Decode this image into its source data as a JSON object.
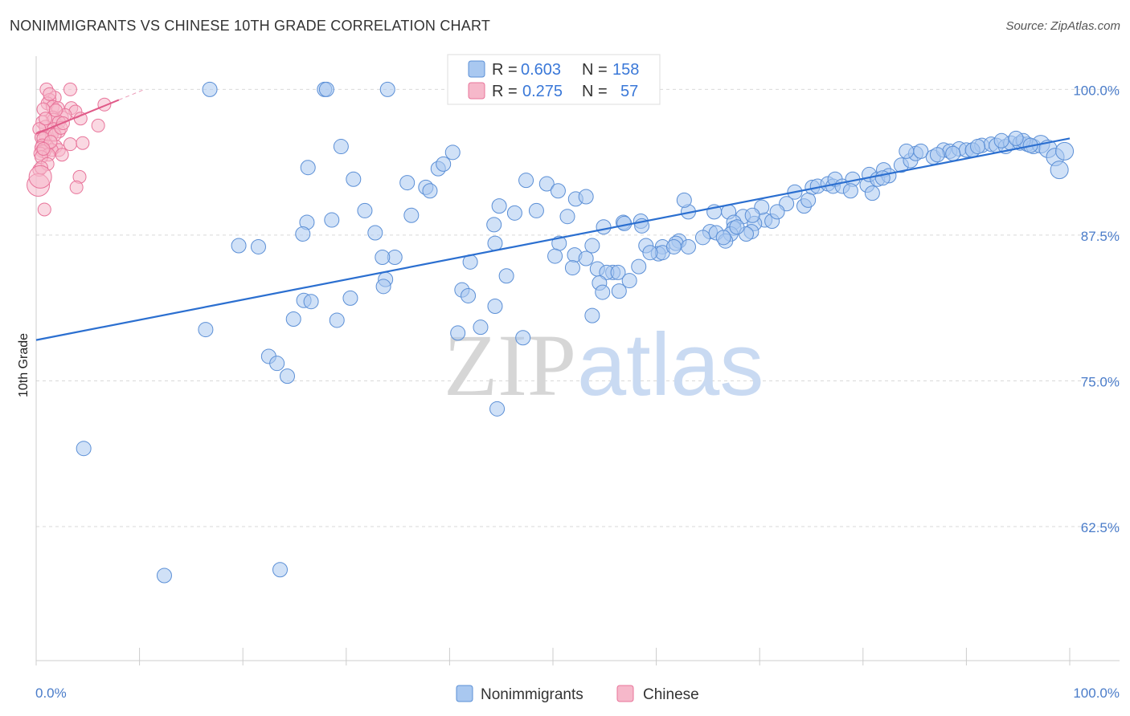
{
  "title": "NONIMMIGRANTS VS CHINESE 10TH GRADE CORRELATION CHART",
  "source": "Source: ZipAtlas.com",
  "watermark": {
    "zip": "ZIP",
    "atlas": "atlas"
  },
  "legend_top": {
    "series1": {
      "r_label": "R =",
      "r_value": "0.603",
      "n_label": "N =",
      "n_value": "158"
    },
    "series2": {
      "r_label": "R =",
      "r_value": "0.275",
      "n_label": "N =",
      "n_value": "57"
    }
  },
  "colors": {
    "blue_fill": "#a9c8f0",
    "blue_stroke": "#5b8fd6",
    "blue_line": "#2b6fd0",
    "pink_fill": "#f6b8ca",
    "pink_stroke": "#e8749a",
    "pink_line": "#e05a88",
    "tick_text": "#4a7cc9",
    "grid": "#d9d9d9"
  },
  "chart_data": {
    "type": "scatter",
    "title": "NONIMMIGRANTS VS CHINESE 10TH GRADE CORRELATION CHART",
    "xlabel": "",
    "ylabel": "10th Grade",
    "xlim": [
      0,
      100
    ],
    "ylim": [
      51,
      102.3
    ],
    "x_tick_labels": [
      "0.0%",
      "100.0%"
    ],
    "y_ticks": [
      {
        "value": 100,
        "label": "100.0%"
      },
      {
        "value": 87.5,
        "label": "87.5%"
      },
      {
        "value": 75,
        "label": "75.0%"
      },
      {
        "value": 62.5,
        "label": "62.5%"
      }
    ],
    "legend": [
      "Nonimmigrants",
      "Chinese"
    ],
    "series": [
      {
        "name": "Nonimmigrants",
        "trend": {
          "x": [
            0,
            100
          ],
          "y": [
            78.5,
            95.8
          ]
        },
        "points": [
          [
            16.8,
            100
          ],
          [
            27.9,
            100
          ],
          [
            28.1,
            100
          ],
          [
            34,
            100
          ],
          [
            29.5,
            95.1
          ],
          [
            26.3,
            93.3
          ],
          [
            30.7,
            92.3
          ],
          [
            35.9,
            92
          ],
          [
            38.9,
            93.2
          ],
          [
            39.4,
            93.6
          ],
          [
            40.3,
            94.6
          ],
          [
            37.7,
            91.6
          ],
          [
            38.1,
            91.3
          ],
          [
            36.3,
            89.2
          ],
          [
            31.8,
            89.6
          ],
          [
            28.6,
            88.8
          ],
          [
            26.2,
            88.6
          ],
          [
            25.8,
            87.6
          ],
          [
            32.8,
            87.7
          ],
          [
            19.6,
            86.6
          ],
          [
            21.5,
            86.5
          ],
          [
            34.7,
            85.6
          ],
          [
            33.5,
            85.6
          ],
          [
            33.8,
            83.7
          ],
          [
            33.6,
            83.1
          ],
          [
            25.9,
            81.9
          ],
          [
            26.6,
            81.8
          ],
          [
            30.4,
            82.1
          ],
          [
            24.9,
            80.3
          ],
          [
            29.1,
            80.2
          ],
          [
            16.4,
            79.4
          ],
          [
            22.5,
            77.1
          ],
          [
            23.3,
            76.5
          ],
          [
            24.3,
            75.4
          ],
          [
            41.2,
            82.8
          ],
          [
            41.8,
            82.3
          ],
          [
            44.4,
            81.4
          ],
          [
            43,
            79.6
          ],
          [
            40.8,
            79.1
          ],
          [
            47.1,
            78.7
          ],
          [
            44.6,
            72.6
          ],
          [
            4.6,
            69.2
          ],
          [
            12.4,
            58.3
          ],
          [
            23.6,
            58.8
          ],
          [
            44.3,
            88.4
          ],
          [
            44.8,
            90
          ],
          [
            46.3,
            89.4
          ],
          [
            48.4,
            89.6
          ],
          [
            49.4,
            91.9
          ],
          [
            47.4,
            92.2
          ],
          [
            50.5,
            91.3
          ],
          [
            52.2,
            90.6
          ],
          [
            53.2,
            90.8
          ],
          [
            51.4,
            89.1
          ],
          [
            50.6,
            86.8
          ],
          [
            50.2,
            85.7
          ],
          [
            52.1,
            85.8
          ],
          [
            53.2,
            85.5
          ],
          [
            51.9,
            84.7
          ],
          [
            54.3,
            84.6
          ],
          [
            44.4,
            86.8
          ],
          [
            42,
            85.2
          ],
          [
            45.5,
            84
          ],
          [
            53.8,
            86.6
          ],
          [
            54.9,
            88.2
          ],
          [
            56.8,
            88.6
          ],
          [
            56.9,
            88.5
          ],
          [
            58.5,
            88.7
          ],
          [
            58.6,
            88.3
          ],
          [
            63.1,
            89.5
          ],
          [
            62.7,
            90.5
          ],
          [
            65.6,
            89.5
          ],
          [
            67,
            89.5
          ],
          [
            68.4,
            89.1
          ],
          [
            67.5,
            88.6
          ],
          [
            70.5,
            88.8
          ],
          [
            71.2,
            88.7
          ],
          [
            69.5,
            88.5
          ],
          [
            65.2,
            87.8
          ],
          [
            64.5,
            87.3
          ],
          [
            65.8,
            87.7
          ],
          [
            62.2,
            87
          ],
          [
            61.9,
            86.8
          ],
          [
            60.6,
            86.5
          ],
          [
            59,
            86.6
          ],
          [
            60.2,
            85.9
          ],
          [
            60.6,
            86
          ],
          [
            63.1,
            86.5
          ],
          [
            67.5,
            88.1
          ],
          [
            67.2,
            87.6
          ],
          [
            69.2,
            87.8
          ],
          [
            68.7,
            87.6
          ],
          [
            66.7,
            87
          ],
          [
            55.8,
            84.3
          ],
          [
            55.2,
            84.3
          ],
          [
            56.3,
            84.3
          ],
          [
            54.5,
            83.4
          ],
          [
            57.4,
            83.6
          ],
          [
            58.3,
            84.8
          ],
          [
            59.4,
            86
          ],
          [
            61.7,
            86.5
          ],
          [
            56.4,
            82.7
          ],
          [
            54.8,
            82.6
          ],
          [
            53.8,
            80.6
          ],
          [
            72.6,
            90.2
          ],
          [
            73.4,
            91.2
          ],
          [
            74.3,
            90
          ],
          [
            75.1,
            91.6
          ],
          [
            75.6,
            91.7
          ],
          [
            76.6,
            91.9
          ],
          [
            77.1,
            91.7
          ],
          [
            77.3,
            92.3
          ],
          [
            78,
            91.7
          ],
          [
            79,
            92.3
          ],
          [
            80.4,
            91.8
          ],
          [
            80.6,
            92.7
          ],
          [
            81.4,
            92.3
          ],
          [
            82,
            93.1
          ],
          [
            82.5,
            92.6
          ],
          [
            83.7,
            93.5
          ],
          [
            84.6,
            93.9
          ],
          [
            85.1,
            94.5
          ],
          [
            85.6,
            94.7
          ],
          [
            86.8,
            94.2
          ],
          [
            87.8,
            94.8
          ],
          [
            88.4,
            94.7
          ],
          [
            89.3,
            94.9
          ],
          [
            90,
            94.8
          ],
          [
            90.6,
            94.8
          ],
          [
            91.5,
            95.2
          ],
          [
            92.4,
            95.3
          ],
          [
            92.9,
            95.2
          ],
          [
            93.8,
            95.1
          ],
          [
            94.3,
            95.4
          ],
          [
            95.2,
            95.4
          ],
          [
            95.9,
            95.3
          ],
          [
            96.5,
            95.1
          ],
          [
            97.2,
            95.3
          ],
          [
            97.9,
            94.9
          ],
          [
            98.6,
            94.2
          ],
          [
            99,
            93.1
          ],
          [
            99.5,
            94.7
          ],
          [
            90.6,
            94.8
          ],
          [
            91.1,
            95.1
          ],
          [
            93.4,
            95.6
          ],
          [
            95.5,
            95.6
          ],
          [
            96.2,
            95.2
          ],
          [
            94.8,
            95.8
          ],
          [
            88.7,
            94.5
          ],
          [
            87.2,
            94.4
          ],
          [
            84.2,
            94.7
          ],
          [
            81.9,
            92.4
          ],
          [
            80.9,
            91.1
          ],
          [
            78.8,
            91.3
          ],
          [
            74.7,
            90.5
          ],
          [
            71.7,
            89.5
          ],
          [
            70.2,
            89.9
          ],
          [
            69.3,
            89.2
          ],
          [
            67.8,
            88.2
          ],
          [
            66.5,
            87.3
          ]
        ]
      },
      {
        "name": "Chinese",
        "trend": {
          "x": [
            0,
            8
          ],
          "y": [
            96.2,
            99.1
          ]
        },
        "points": [
          [
            1,
            100
          ],
          [
            3.3,
            100
          ],
          [
            1.8,
            99.3
          ],
          [
            1.3,
            99.1
          ],
          [
            1.1,
            98.8
          ],
          [
            1.6,
            98.5
          ],
          [
            2.1,
            98.4
          ],
          [
            0.7,
            98.3
          ],
          [
            3.4,
            98.4
          ],
          [
            3.8,
            98.1
          ],
          [
            2.5,
            97.6
          ],
          [
            1.6,
            97.6
          ],
          [
            2.8,
            97.8
          ],
          [
            1.7,
            97.4
          ],
          [
            0.6,
            97.2
          ],
          [
            2.2,
            97.2
          ],
          [
            4.3,
            97.5
          ],
          [
            6,
            96.9
          ],
          [
            0.9,
            96.8
          ],
          [
            1.7,
            96.6
          ],
          [
            0.3,
            96.6
          ],
          [
            2.2,
            96.4
          ],
          [
            0.9,
            96
          ],
          [
            1.5,
            96.1
          ],
          [
            0.5,
            95.9
          ],
          [
            0.7,
            95.8
          ],
          [
            3.3,
            95.3
          ],
          [
            4.5,
            95.4
          ],
          [
            0.6,
            95.2
          ],
          [
            1.9,
            95.1
          ],
          [
            1.1,
            95.1
          ],
          [
            0.5,
            95
          ],
          [
            2.2,
            94.8
          ],
          [
            1.5,
            94.8
          ],
          [
            0.8,
            94.7
          ],
          [
            0.6,
            94.7
          ],
          [
            0.4,
            94.5
          ],
          [
            1.2,
            94.4
          ],
          [
            0.5,
            94.2
          ],
          [
            2.5,
            94.4
          ],
          [
            0.3,
            93.1
          ],
          [
            1.1,
            93.6
          ],
          [
            0.5,
            93.3
          ],
          [
            4.2,
            92.5
          ],
          [
            3.9,
            91.6
          ],
          [
            0.2,
            91.8
          ],
          [
            0.8,
            89.7
          ],
          [
            6.6,
            98.7
          ],
          [
            1.8,
            96.1
          ],
          [
            2.4,
            96.7
          ],
          [
            0.4,
            92.5
          ],
          [
            1.4,
            95.5
          ],
          [
            0.9,
            97.5
          ],
          [
            1.9,
            98.2
          ],
          [
            2.6,
            97.1
          ],
          [
            0.7,
            94.9
          ],
          [
            1.3,
            99.6
          ]
        ]
      }
    ]
  }
}
